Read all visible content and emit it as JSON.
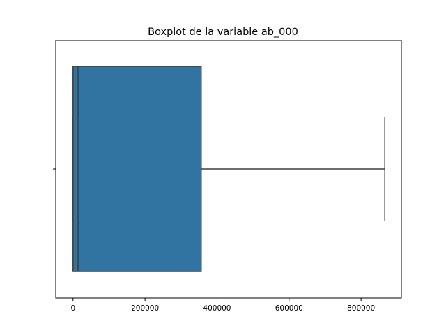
{
  "chart_data": {
    "type": "box",
    "orientation": "horizontal",
    "title": "Boxplot de la variable ab_000",
    "xlabel": "",
    "ylabel": "",
    "xlim": [
      -48000,
      912000
    ],
    "xticks": [
      0,
      200000,
      400000,
      600000,
      800000
    ],
    "xtick_labels": [
      "0",
      "200000",
      "400000",
      "600000",
      "800000"
    ],
    "grid": false,
    "box": {
      "whisker_low": 0,
      "q1": 0,
      "median": 14000,
      "q3": 356000,
      "whisker_high": 866000
    },
    "colors": {
      "box_fill": "#3274a1",
      "box_edge": "#3f3f3f"
    }
  }
}
